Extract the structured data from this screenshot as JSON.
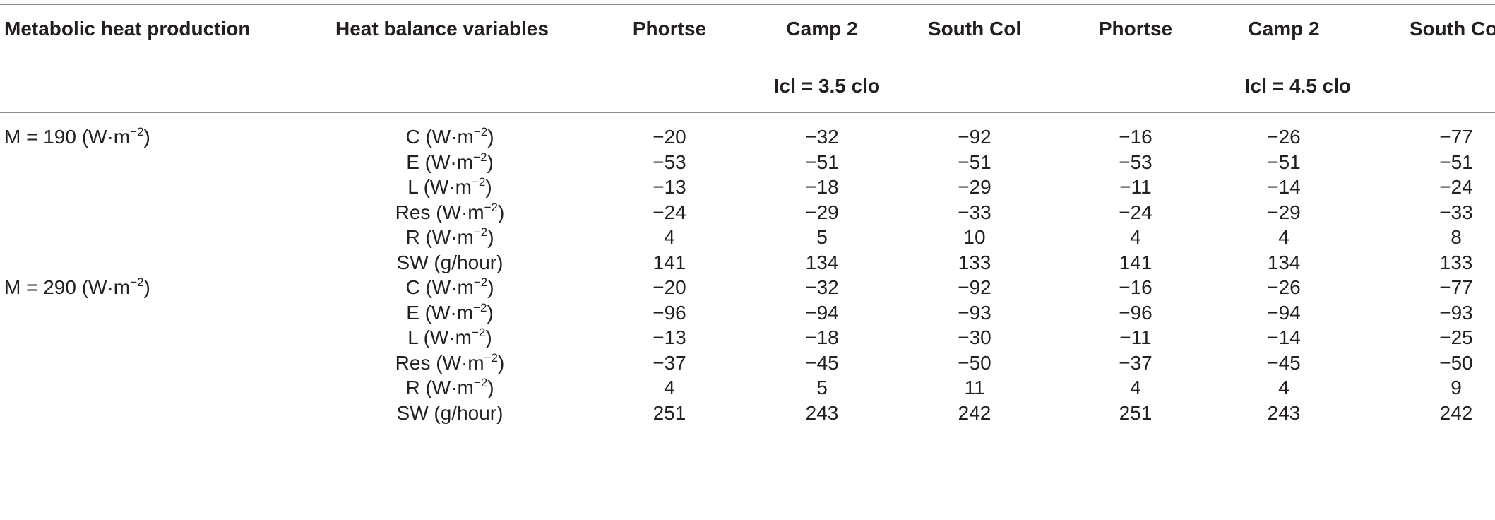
{
  "headers": {
    "metabolic": "Metabolic heat production",
    "variables": "Heat balance variables",
    "locations": [
      "Phortse",
      "Camp 2",
      "South Col",
      "Phortse",
      "Camp 2",
      "South Col"
    ]
  },
  "clothing": [
    "Icl = 3.5 clo",
    "Icl = 4.5 clo"
  ],
  "unit_base": "(W·m",
  "unit_exp": "−2",
  "unit_close": ")",
  "groups": [
    {
      "prefix": "M = 190 ",
      "rows": [
        {
          "var": "C ",
          "values": [
            "−20",
            "−32",
            "−92",
            "−16",
            "−26",
            "−77"
          ]
        },
        {
          "var": "E ",
          "values": [
            "−53",
            "−51",
            "−51",
            "−53",
            "−51",
            "−51"
          ]
        },
        {
          "var": "L ",
          "values": [
            "−13",
            "−18",
            "−29",
            "−11",
            "−14",
            "−24"
          ]
        },
        {
          "var": "Res ",
          "values": [
            "−24",
            "−29",
            "−33",
            "−24",
            "−29",
            "−33"
          ]
        },
        {
          "var": "R ",
          "values": [
            "4",
            "5",
            "10",
            "4",
            "4",
            "8"
          ]
        },
        {
          "var": "SW (g/hour)",
          "values": [
            "141",
            "134",
            "133",
            "141",
            "134",
            "133"
          ]
        }
      ]
    },
    {
      "prefix": "M = 290 ",
      "rows": [
        {
          "var": "C ",
          "values": [
            "−20",
            "−32",
            "−92",
            "−16",
            "−26",
            "−77"
          ]
        },
        {
          "var": "E ",
          "values": [
            "−96",
            "−94",
            "−93",
            "−96",
            "−94",
            "−93"
          ]
        },
        {
          "var": "L ",
          "values": [
            "−13",
            "−18",
            "−30",
            "−11",
            "−14",
            "−25"
          ]
        },
        {
          "var": "Res ",
          "values": [
            "−37",
            "−45",
            "−50",
            "−37",
            "−45",
            "−50"
          ]
        },
        {
          "var": "R ",
          "values": [
            "4",
            "5",
            "11",
            "4",
            "4",
            "9"
          ]
        },
        {
          "var": "SW (g/hour)",
          "values": [
            "251",
            "243",
            "242",
            "251",
            "243",
            "242"
          ]
        }
      ]
    }
  ]
}
